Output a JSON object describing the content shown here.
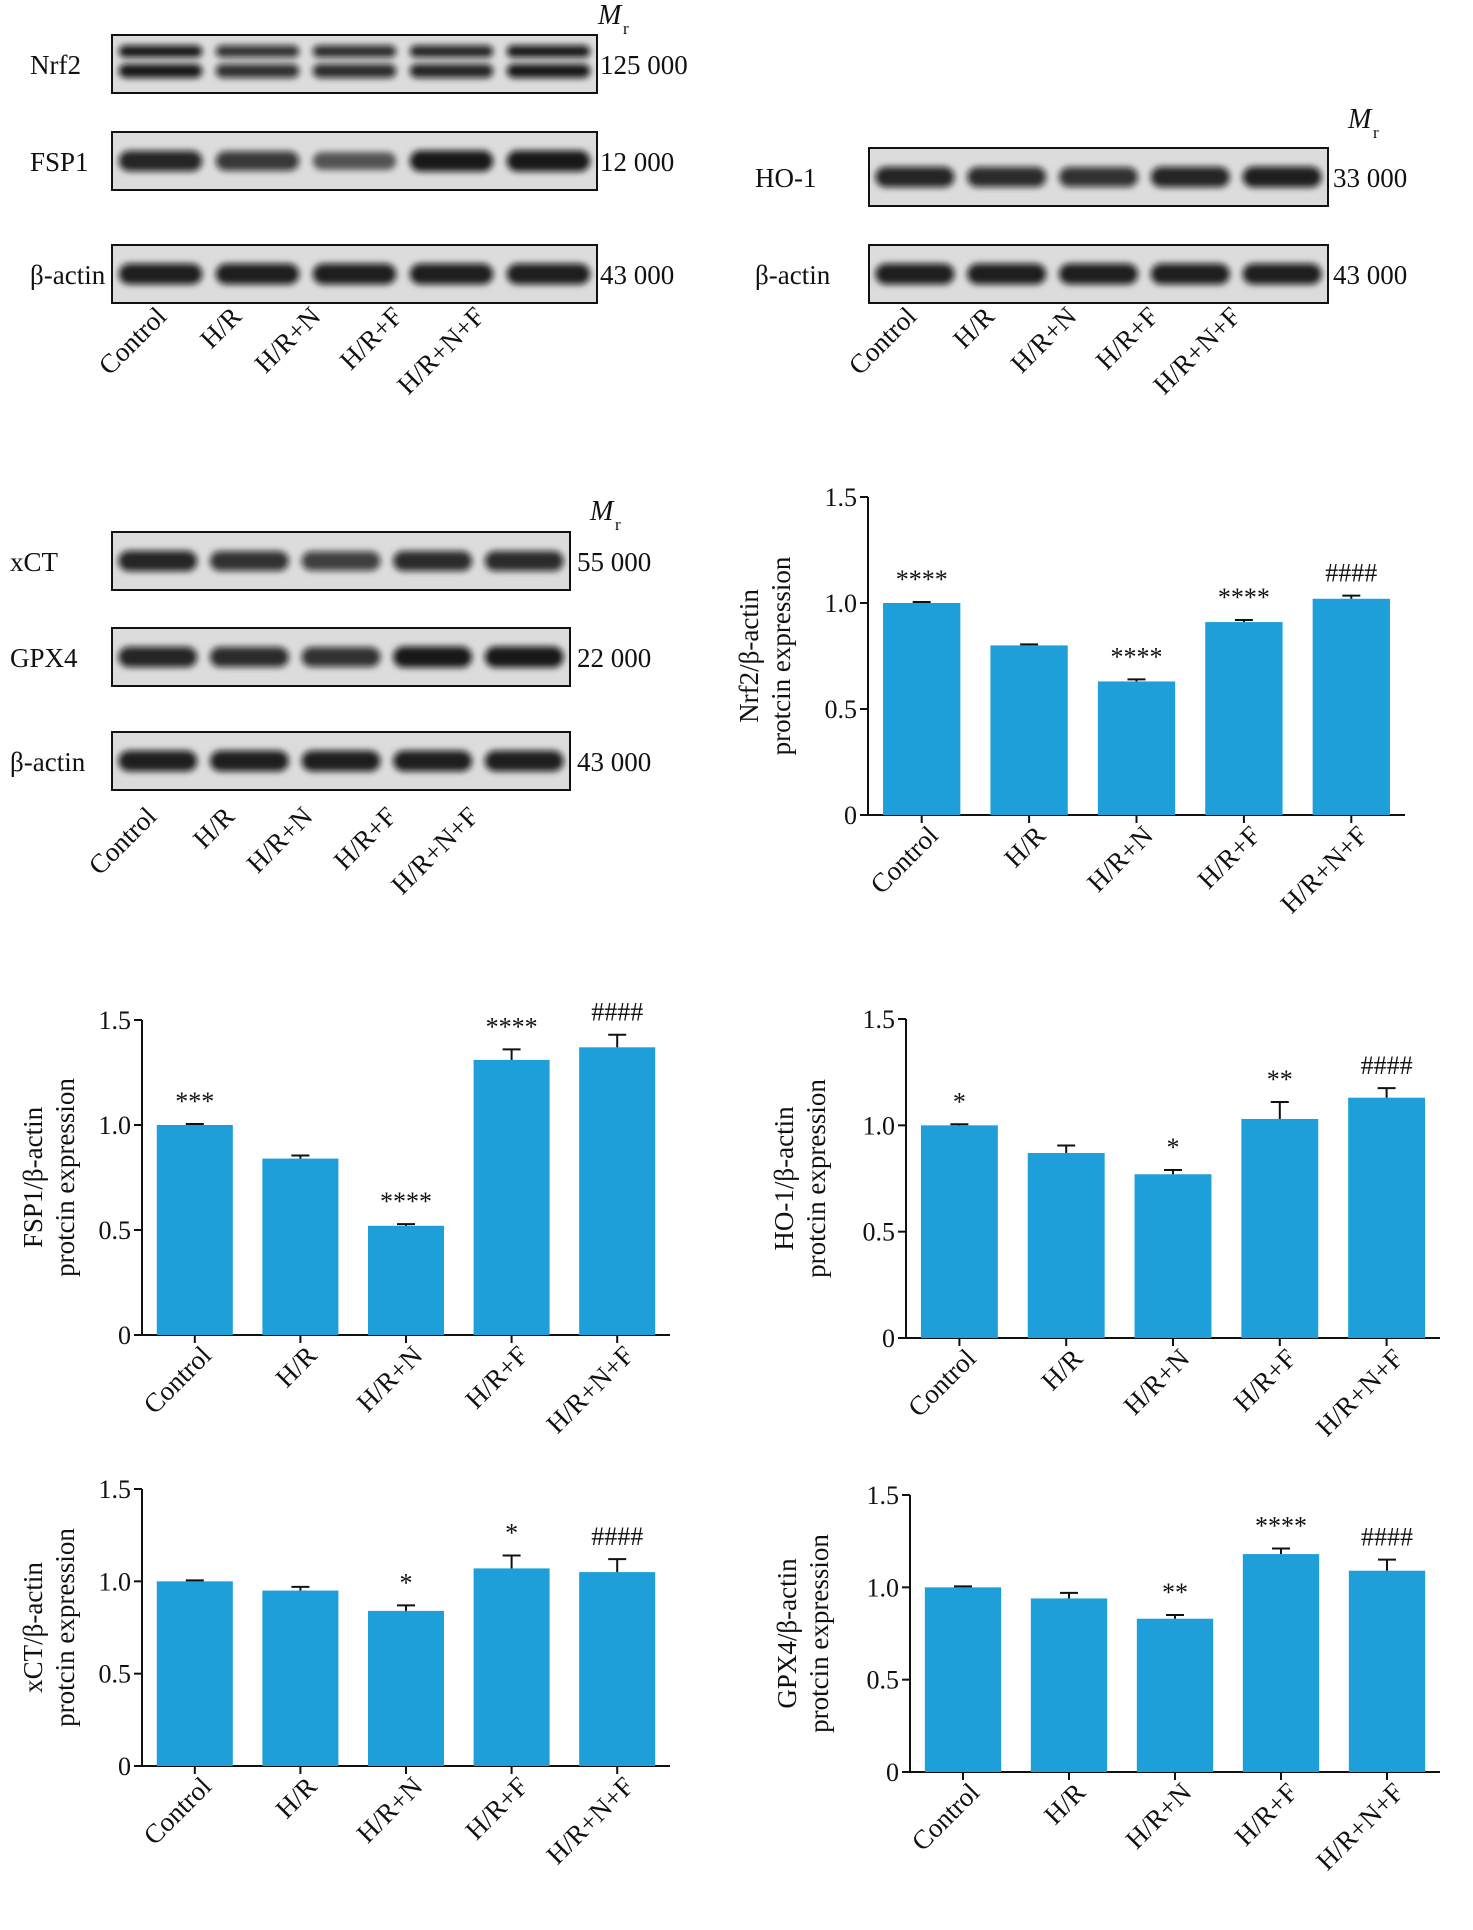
{
  "figure": {
    "mr_label": "M",
    "mr_sub": "r",
    "lane_labels": [
      "Control",
      "H/R",
      "H/R+N",
      "H/R+F",
      "H/R+N+F"
    ]
  },
  "blots": [
    {
      "id": "blot-a",
      "rows": [
        {
          "protein": "Nrf2",
          "mw": "125 000",
          "pattern": "double",
          "intensity": [
            1.0,
            0.8,
            0.85,
            0.9,
            1.0
          ]
        },
        {
          "protein": "FSP1",
          "mw": "12 000",
          "pattern": "single",
          "intensity": [
            0.9,
            0.75,
            0.45,
            1.0,
            1.0
          ]
        },
        {
          "protein": "β-actin",
          "mw": "43 000",
          "pattern": "single",
          "intensity": [
            0.95,
            0.95,
            0.95,
            0.95,
            0.95
          ]
        }
      ]
    },
    {
      "id": "blot-b",
      "rows": [
        {
          "protein": "HO-1",
          "mw": "33 000",
          "pattern": "single",
          "intensity": [
            0.9,
            0.85,
            0.8,
            0.9,
            0.95
          ]
        },
        {
          "protein": "β-actin",
          "mw": "43 000",
          "pattern": "single",
          "intensity": [
            0.95,
            0.95,
            0.95,
            0.95,
            0.95
          ]
        }
      ]
    },
    {
      "id": "blot-c",
      "rows": [
        {
          "protein": "xCT",
          "mw": "55 000",
          "pattern": "single",
          "intensity": [
            0.9,
            0.8,
            0.7,
            0.85,
            0.85
          ]
        },
        {
          "protein": "GPX4",
          "mw": "22 000",
          "pattern": "single",
          "intensity": [
            0.9,
            0.85,
            0.8,
            1.0,
            1.0
          ]
        },
        {
          "protein": "β-actin",
          "mw": "43 000",
          "pattern": "single",
          "intensity": [
            0.95,
            0.95,
            0.95,
            0.95,
            0.95
          ]
        }
      ]
    }
  ],
  "chart_data": [
    {
      "type": "bar",
      "categories": [
        "Control",
        "H/R",
        "H/R+N",
        "H/R+F",
        "H/R+N+F"
      ],
      "values": [
        1.0,
        0.8,
        0.63,
        0.91,
        1.02
      ],
      "errors": [
        0.005,
        0.005,
        0.01,
        0.01,
        0.015
      ],
      "annotations": [
        "****",
        "",
        "****",
        "****",
        "####"
      ],
      "ylabel": [
        "Nrf2/β-actin",
        "protcin expression"
      ],
      "ylim": [
        0,
        1.5
      ],
      "yticks": [
        "0",
        "0.5",
        "1.0",
        "1.5"
      ],
      "bar_color": "#1e9fd9"
    },
    {
      "type": "bar",
      "categories": [
        "Control",
        "H/R",
        "H/R+N",
        "H/R+F",
        "H/R+N+F"
      ],
      "values": [
        1.0,
        0.84,
        0.52,
        1.31,
        1.37
      ],
      "errors": [
        0.005,
        0.015,
        0.008,
        0.05,
        0.06
      ],
      "annotations": [
        "***",
        "",
        "****",
        "****",
        "####"
      ],
      "ylabel": [
        "FSP1/β-actin",
        "protcin expression"
      ],
      "ylim": [
        0,
        1.5
      ],
      "yticks": [
        "0",
        "0.5",
        "1.0",
        "1.5"
      ],
      "bar_color": "#1e9fd9"
    },
    {
      "type": "bar",
      "categories": [
        "Control",
        "H/R",
        "H/R+N",
        "H/R+F",
        "H/R+N+F"
      ],
      "values": [
        1.0,
        0.87,
        0.77,
        1.03,
        1.13
      ],
      "errors": [
        0.005,
        0.035,
        0.02,
        0.08,
        0.045
      ],
      "annotations": [
        "*",
        "",
        "*",
        "**",
        "####"
      ],
      "ylabel": [
        "HO-1/β-actin",
        "protcin expression"
      ],
      "ylim": [
        0,
        1.5
      ],
      "yticks": [
        "0",
        "0.5",
        "1.0",
        "1.5"
      ],
      "bar_color": "#1e9fd9"
    },
    {
      "type": "bar",
      "categories": [
        "Control",
        "H/R",
        "H/R+N",
        "H/R+F",
        "H/R+N+F"
      ],
      "values": [
        1.0,
        0.95,
        0.84,
        1.07,
        1.05
      ],
      "errors": [
        0.005,
        0.02,
        0.03,
        0.07,
        0.07
      ],
      "annotations": [
        "",
        "",
        "*",
        "*",
        "####"
      ],
      "ylabel": [
        "xCT/β-actin",
        "protcin expression"
      ],
      "ylim": [
        0,
        1.5
      ],
      "yticks": [
        "0",
        "0.5",
        "1.0",
        "1.5"
      ],
      "bar_color": "#1e9fd9"
    },
    {
      "type": "bar",
      "categories": [
        "Control",
        "H/R",
        "H/R+N",
        "H/R+F",
        "H/R+N+F"
      ],
      "values": [
        1.0,
        0.94,
        0.83,
        1.18,
        1.09
      ],
      "errors": [
        0.005,
        0.03,
        0.02,
        0.03,
        0.06
      ],
      "annotations": [
        "",
        "",
        "**",
        "****",
        "####"
      ],
      "ylabel": [
        "GPX4/β-actin",
        "protcin expression"
      ],
      "ylim": [
        0,
        1.5
      ],
      "yticks": [
        "0",
        "0.5",
        "1.0",
        "1.5"
      ],
      "bar_color": "#1e9fd9"
    }
  ]
}
